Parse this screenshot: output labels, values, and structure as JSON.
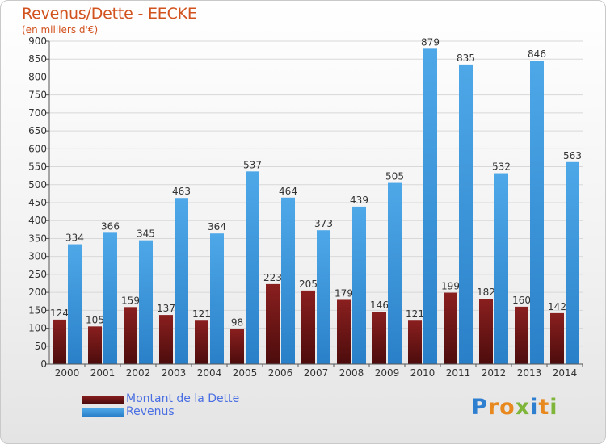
{
  "chart_data": {
    "type": "bar",
    "title": "Revenus/Dette - EECKE",
    "subtitle": "(en milliers d'€)",
    "categories": [
      "2000",
      "2001",
      "2002",
      "2003",
      "2004",
      "2005",
      "2006",
      "2007",
      "2008",
      "2009",
      "2010",
      "2011",
      "2012",
      "2013",
      "2014"
    ],
    "series": [
      {
        "name": "Montant de la Dette",
        "color": "#7a1a1a",
        "values": [
          124,
          105,
          159,
          137,
          121,
          98,
          223,
          205,
          179,
          146,
          121,
          199,
          182,
          160,
          142
        ]
      },
      {
        "name": "Revenus",
        "color": "#3d97dc",
        "values": [
          334,
          366,
          345,
          463,
          364,
          537,
          464,
          373,
          439,
          505,
          879,
          835,
          532,
          846,
          563
        ]
      }
    ],
    "ylim": [
      0,
      900
    ],
    "yticks": [
      0,
      50,
      100,
      150,
      200,
      250,
      300,
      350,
      400,
      450,
      500,
      550,
      600,
      650,
      700,
      750,
      800,
      850,
      900
    ],
    "grid": true,
    "legend_position": "bottom-left"
  },
  "branding": {
    "logo_letters": [
      "P",
      "r",
      "o",
      "x",
      "i",
      "t",
      "i"
    ],
    "logo_colors": [
      "#2f7fd1",
      "#e8891f",
      "#e8891f",
      "#7fb63a",
      "#2f7fd1",
      "#e8891f",
      "#7fb63a"
    ]
  }
}
